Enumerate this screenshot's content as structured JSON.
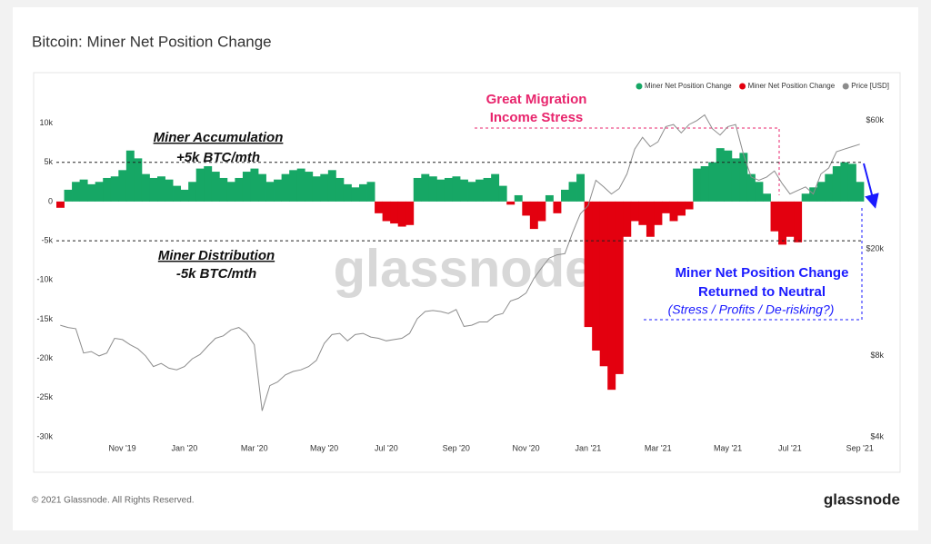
{
  "chart_data": {
    "type": "bar",
    "title": "Bitcoin: Miner Net Position Change",
    "footer": "© 2021 Glassnode. All Rights Reserved.",
    "logo": "glassnode",
    "watermark": "glassnode",
    "annotations": [
      "Great Migration",
      "Income Stress",
      "Miner Accumulation",
      "+5k BTC/mth",
      "Miner Distribution",
      "-5k BTC/mth",
      "Miner Net Position Change",
      "Returned to Neutral",
      "(Stress / Profits / De-risking?)"
    ],
    "reference_lines": [
      5000,
      -5000
    ],
    "categories": [
      null,
      null,
      null,
      null,
      null,
      null,
      null,
      null,
      "Nov '19",
      null,
      null,
      null,
      null,
      null,
      null,
      null,
      "Jan '20",
      null,
      null,
      null,
      null,
      null,
      null,
      null,
      null,
      "Mar '20",
      null,
      null,
      null,
      null,
      null,
      null,
      null,
      null,
      "May '20",
      null,
      null,
      null,
      null,
      null,
      null,
      null,
      "Jul '20",
      null,
      null,
      null,
      null,
      null,
      null,
      null,
      null,
      "Sep '20",
      null,
      null,
      null,
      null,
      null,
      null,
      null,
      null,
      "Nov '20",
      null,
      null,
      null,
      null,
      null,
      null,
      null,
      "Jan '21",
      null,
      null,
      null,
      null,
      null,
      null,
      null,
      null,
      "Mar '21",
      null,
      null,
      null,
      null,
      null,
      null,
      null,
      null,
      "May '21",
      null,
      null,
      null,
      null,
      null,
      null,
      null,
      "Jul '21",
      null,
      null,
      null,
      null,
      null,
      null,
      null,
      null,
      "Sep '21"
    ],
    "series": [
      {
        "name": "Miner Net Position Change",
        "color": "#16a765",
        "values": [
          null,
          1500,
          2500,
          2800,
          2200,
          2500,
          3000,
          3200,
          4000,
          6500,
          5500,
          3500,
          3000,
          3200,
          2800,
          2000,
          1500,
          2500,
          4200,
          4500,
          3800,
          3000,
          2500,
          3000,
          3800,
          4200,
          3500,
          2500,
          2800,
          3500,
          4000,
          4200,
          3800,
          3200,
          3500,
          4000,
          3000,
          2200,
          1800,
          2200,
          2500,
          null,
          null,
          null,
          null,
          null,
          3000,
          3500,
          3200,
          2800,
          3000,
          3200,
          2800,
          2500,
          2800,
          3000,
          3500,
          2000,
          null,
          800,
          null,
          null,
          null,
          800,
          null,
          1500,
          2500,
          3500,
          null,
          null,
          null,
          null,
          null,
          null,
          null,
          null,
          null,
          null,
          null,
          null,
          null,
          null,
          4200,
          4500,
          5000,
          6800,
          6500,
          5500,
          6200,
          3500,
          2500,
          1000,
          null,
          null,
          null,
          null,
          1000,
          1800,
          2500,
          3500,
          4500,
          5000,
          4800,
          2500
        ]
      },
      {
        "name": "Miner Net Position Change",
        "color": "#e3000f",
        "values": [
          -800,
          null,
          null,
          null,
          null,
          null,
          null,
          null,
          null,
          null,
          null,
          null,
          null,
          null,
          null,
          null,
          null,
          null,
          null,
          null,
          null,
          null,
          null,
          null,
          null,
          null,
          null,
          null,
          null,
          null,
          null,
          null,
          null,
          null,
          null,
          null,
          null,
          null,
          null,
          null,
          null,
          -1500,
          -2500,
          -2800,
          -3200,
          -3000,
          null,
          null,
          null,
          null,
          null,
          null,
          null,
          null,
          null,
          null,
          null,
          null,
          -400,
          null,
          -1800,
          -3500,
          -2500,
          null,
          -1500,
          null,
          null,
          null,
          -16000,
          -19000,
          -21000,
          -24000,
          -22000,
          -4500,
          -2500,
          -3000,
          -4500,
          -3000,
          -1500,
          -2500,
          -1800,
          -1000,
          null,
          null,
          null,
          null,
          null,
          null,
          null,
          null,
          null,
          null,
          -3800,
          -5500,
          -4500,
          -5200,
          null,
          null,
          null,
          null,
          null,
          null,
          null,
          null
        ]
      },
      {
        "name": "Price [USD]",
        "color": "#8c8c8c",
        "axis": "y2",
        "values": [
          10400,
          10200,
          10100,
          8200,
          8300,
          8000,
          8200,
          9300,
          9200,
          8800,
          8500,
          8000,
          7300,
          7500,
          7200,
          7100,
          7300,
          7800,
          8100,
          8700,
          9300,
          9500,
          10000,
          10200,
          9700,
          8800,
          5000,
          6200,
          6400,
          6800,
          7000,
          7100,
          7300,
          7700,
          8900,
          9600,
          9700,
          9100,
          9600,
          9700,
          9400,
          9300,
          9100,
          9200,
          9300,
          9700,
          11000,
          11700,
          11800,
          11700,
          11500,
          11900,
          10300,
          10400,
          10700,
          10700,
          11300,
          11500,
          12800,
          13100,
          13700,
          15500,
          17000,
          18500,
          19000,
          19200,
          23000,
          27000,
          29000,
          36000,
          34000,
          32000,
          33500,
          38000,
          47000,
          52000,
          48000,
          50000,
          57000,
          58000,
          54000,
          58000,
          60000,
          63000,
          56000,
          53000,
          57000,
          58000,
          45000,
          37000,
          36000,
          37000,
          39000,
          35000,
          32000,
          33000,
          34000,
          32000,
          38000,
          40000,
          46000,
          47000,
          48000,
          49000
        ]
      }
    ],
    "ylim": [
      -30000,
      15500
    ],
    "yticks": [
      {
        "value": 10000,
        "label": "10k"
      },
      {
        "value": 5000,
        "label": "5k"
      },
      0,
      {
        "value": -5000,
        "label": "-5k"
      },
      {
        "value": -10000,
        "label": "-10k"
      },
      {
        "value": -15000,
        "label": "-15k"
      },
      {
        "value": -20000,
        "label": "-20k"
      },
      {
        "value": -25000,
        "label": "-25k"
      },
      {
        "value": -30000,
        "label": "-30k"
      }
    ],
    "y2lim": [
      4000,
      85000
    ],
    "y2log": true,
    "y2ticks": [
      {
        "value": 60000,
        "label": "$60k"
      },
      {
        "value": 20000,
        "label": "$20k"
      },
      {
        "value": 8000,
        "label": "$8k"
      },
      {
        "value": 4000,
        "label": "$4k"
      }
    ],
    "grid": false,
    "legend": "top-right"
  }
}
